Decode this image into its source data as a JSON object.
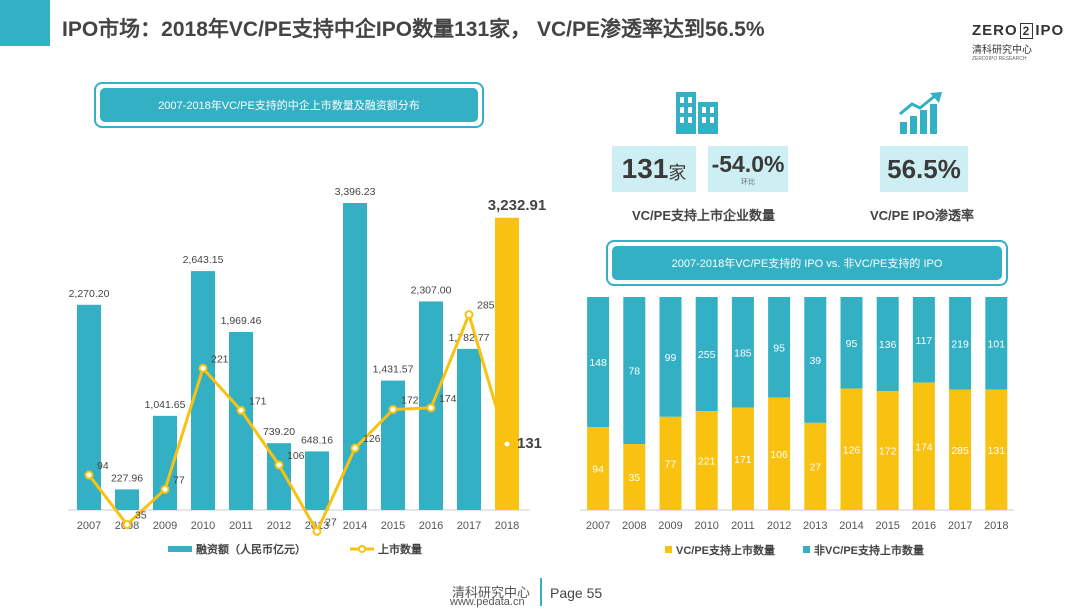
{
  "header": {
    "title": "IPO市场：2018年VC/PE支持中企IPO数量131家， VC/PE渗透率达到56.5%",
    "logo_text_left": "ZERO",
    "logo_text_mid": "2",
    "logo_text_right": "IPO",
    "logo_sub": "清科研究中心",
    "logo_small": "ZERO2IPO RESEARCH"
  },
  "colors": {
    "teal": "#33b0c4",
    "yellow": "#f9c211",
    "light_teal": "#cdeef3",
    "text": "#444444"
  },
  "left_chart": {
    "title": "2007-2018年VC/PE支持的中企上市数量及融资额分布"
  },
  "kpis": {
    "count_value": "131",
    "count_unit": "家",
    "change_value": "-54.0%",
    "change_note": "环比",
    "count_caption": "VC/PE支持上市企业数量",
    "rate_value": "56.5%",
    "rate_caption": "VC/PE IPO渗透率",
    "building_icon": "building-icon",
    "growth_icon": "growth-chart-icon"
  },
  "right_chart": {
    "title": "2007-2018年VC/PE支持的 IPO vs. 非VC/PE支持的 IPO"
  },
  "footer": {
    "source": "清科研究中心",
    "url": "www.pedata.cn",
    "page": "Page 55"
  },
  "chart_data": [
    {
      "type": "bar",
      "title": "2007-2018年VC/PE支持的中企上市数量及融资额分布",
      "categories": [
        "2007",
        "2008",
        "2009",
        "2010",
        "2011",
        "2012",
        "2013",
        "2014",
        "2015",
        "2016",
        "2017",
        "2018"
      ],
      "series": [
        {
          "name": "融资额（人民币亿元）",
          "type": "bar",
          "values": [
            2270.2,
            227.96,
            1041.65,
            2643.15,
            1969.46,
            739.2,
            648.16,
            3396.23,
            1431.57,
            2307.0,
            1782.77,
            3232.91
          ],
          "labels": [
            "2,270.20",
            "227.96",
            "1,041.65",
            "2,643.15",
            "1,969.46",
            "739.20",
            "648.16",
            "3,396.23",
            "1,431.57",
            "2,307.00",
            "1,782.77",
            "3,232.91"
          ]
        },
        {
          "name": "上市数量",
          "type": "line",
          "values": [
            94,
            35,
            77,
            221,
            171,
            106,
            27,
            126,
            172,
            174,
            285,
            131
          ]
        }
      ],
      "legend_position": "bottom"
    },
    {
      "type": "bar",
      "stacked": true,
      "percent": true,
      "title": "2007-2018年VC/PE支持的 IPO vs. 非VC/PE支持的 IPO",
      "categories": [
        "2007",
        "2008",
        "2009",
        "2010",
        "2011",
        "2012",
        "2013",
        "2014",
        "2015",
        "2016",
        "2017",
        "2018"
      ],
      "series": [
        {
          "name": "VC/PE支持上市数量",
          "values": [
            94,
            35,
            77,
            221,
            171,
            106,
            27,
            126,
            172,
            174,
            285,
            131
          ]
        },
        {
          "name": "非VC/PE支持上市数量",
          "values": [
            148,
            78,
            99,
            255,
            185,
            95,
            39,
            95,
            136,
            117,
            219,
            101
          ]
        }
      ],
      "legend_position": "bottom"
    }
  ]
}
